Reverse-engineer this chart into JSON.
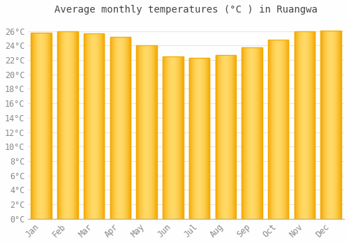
{
  "title": "Average monthly temperatures (°C ) in Ruangwa",
  "months": [
    "Jan",
    "Feb",
    "Mar",
    "Apr",
    "May",
    "Jun",
    "Jul",
    "Aug",
    "Sep",
    "Oct",
    "Nov",
    "Dec"
  ],
  "temperatures": [
    25.8,
    26.0,
    25.7,
    25.2,
    24.0,
    22.5,
    22.3,
    22.7,
    23.7,
    24.8,
    26.0,
    26.1
  ],
  "bar_color_dark": "#F5A800",
  "bar_color_mid": "#FFBE00",
  "bar_color_light": "#FFD966",
  "background_color": "#FEFEFE",
  "grid_color": "#E0E0E0",
  "ytick_values": [
    0,
    2,
    4,
    6,
    8,
    10,
    12,
    14,
    16,
    18,
    20,
    22,
    24,
    26
  ],
  "ylim": [
    0,
    27.5
  ],
  "title_fontsize": 10,
  "tick_fontsize": 8.5
}
